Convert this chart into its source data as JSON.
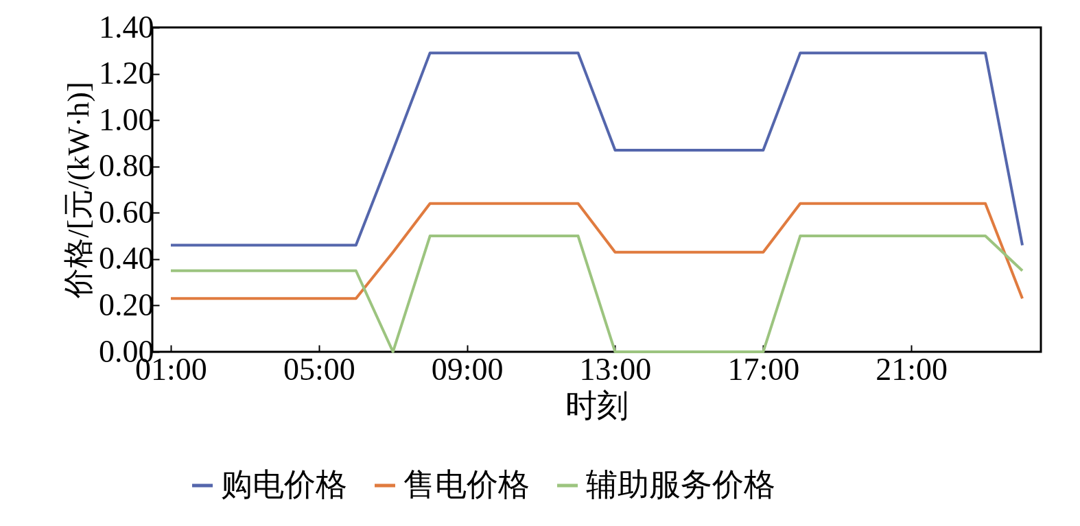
{
  "chart_data": {
    "type": "line",
    "xlabel": "时刻",
    "ylabel": "价格/[元/(kW·h)]",
    "x": [
      1,
      2,
      3,
      4,
      5,
      6,
      7,
      8,
      9,
      10,
      11,
      12,
      13,
      14,
      15,
      16,
      17,
      18,
      19,
      20,
      21,
      22,
      23,
      24
    ],
    "xlim": [
      0.5,
      24.5
    ],
    "xticks": [
      {
        "value": 1,
        "label": "01:00"
      },
      {
        "value": 5,
        "label": "05:00"
      },
      {
        "value": 9,
        "label": "09:00"
      },
      {
        "value": 13,
        "label": "13:00"
      },
      {
        "value": 17,
        "label": "17:00"
      },
      {
        "value": 21,
        "label": "21:00"
      }
    ],
    "ylim": [
      0,
      1.4
    ],
    "yticks": [
      {
        "value": 0,
        "label": "0.00"
      },
      {
        "value": 0.2,
        "label": "0.20"
      },
      {
        "value": 0.4,
        "label": "0.40"
      },
      {
        "value": 0.6,
        "label": "0.60"
      },
      {
        "value": 0.8,
        "label": "0.80"
      },
      {
        "value": 1.0,
        "label": "1.00"
      },
      {
        "value": 1.2,
        "label": "1.20"
      },
      {
        "value": 1.4,
        "label": "1.40"
      }
    ],
    "grid": false,
    "legend": "bottom",
    "marker": "none",
    "line_style": "solid",
    "series": [
      {
        "name": "购电价格",
        "color": "#5466ac",
        "values": [
          0.46,
          0.46,
          0.46,
          0.46,
          0.46,
          0.46,
          0.87,
          1.29,
          1.29,
          1.29,
          1.29,
          1.29,
          0.87,
          0.87,
          0.87,
          0.87,
          0.87,
          1.29,
          1.29,
          1.29,
          1.29,
          1.29,
          1.29,
          0.46
        ]
      },
      {
        "name": "售电价格",
        "color": "#e07b3f",
        "values": [
          0.23,
          0.23,
          0.23,
          0.23,
          0.23,
          0.23,
          0.43,
          0.64,
          0.64,
          0.64,
          0.64,
          0.64,
          0.43,
          0.43,
          0.43,
          0.43,
          0.43,
          0.64,
          0.64,
          0.64,
          0.64,
          0.64,
          0.64,
          0.23
        ]
      },
      {
        "name": "辅助服务价格",
        "color": "#9cc47f",
        "values": [
          0.35,
          0.35,
          0.35,
          0.35,
          0.35,
          0.35,
          0,
          0.5,
          0.5,
          0.5,
          0.5,
          0.5,
          0,
          0,
          0,
          0,
          0,
          0.5,
          0.5,
          0.5,
          0.5,
          0.5,
          0.5,
          0.35
        ]
      }
    ]
  }
}
